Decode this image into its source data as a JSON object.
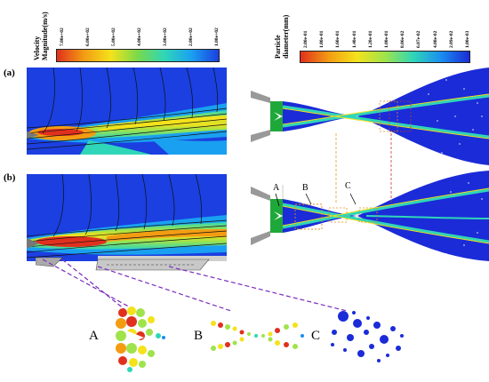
{
  "velocity_colorbar": {
    "title_line1": "Velocity",
    "title_line2": "Magnitude(m/s)",
    "ticks": [
      "7.00e+02",
      "6.00e+02",
      "5.00e+02",
      "4.00e+02",
      "3.00e+02",
      "2.00e+02",
      "1.00e+02"
    ],
    "colors": [
      "#e0301e",
      "#f39c12",
      "#f4e21b",
      "#79d94b",
      "#2fd6b8",
      "#1aa0f0",
      "#1b3fe0"
    ]
  },
  "particle_colorbar": {
    "title_line1": "Particle",
    "title_line2": "diameter(mm)",
    "ticks": [
      "2.00e-01",
      "1.80e-01",
      "1.60e-01",
      "1.40e-01",
      "1.20e-01",
      "1.00e-01",
      "8.06e-02",
      "6.07e-02",
      "4.08e-02",
      "2.09e-02",
      "1.00e-03"
    ],
    "colors": [
      "#e0301e",
      "#f39c12",
      "#f4e21b",
      "#9fe34a",
      "#2fd6b8",
      "#1a8df0",
      "#1b2bd8"
    ]
  },
  "panels": {
    "a": "(a)",
    "b": "(b)"
  },
  "region_labels": {
    "A": "A",
    "B": "B",
    "C": "C"
  },
  "zoom_labels": {
    "A": "A",
    "B": "B",
    "C": "C"
  }
}
